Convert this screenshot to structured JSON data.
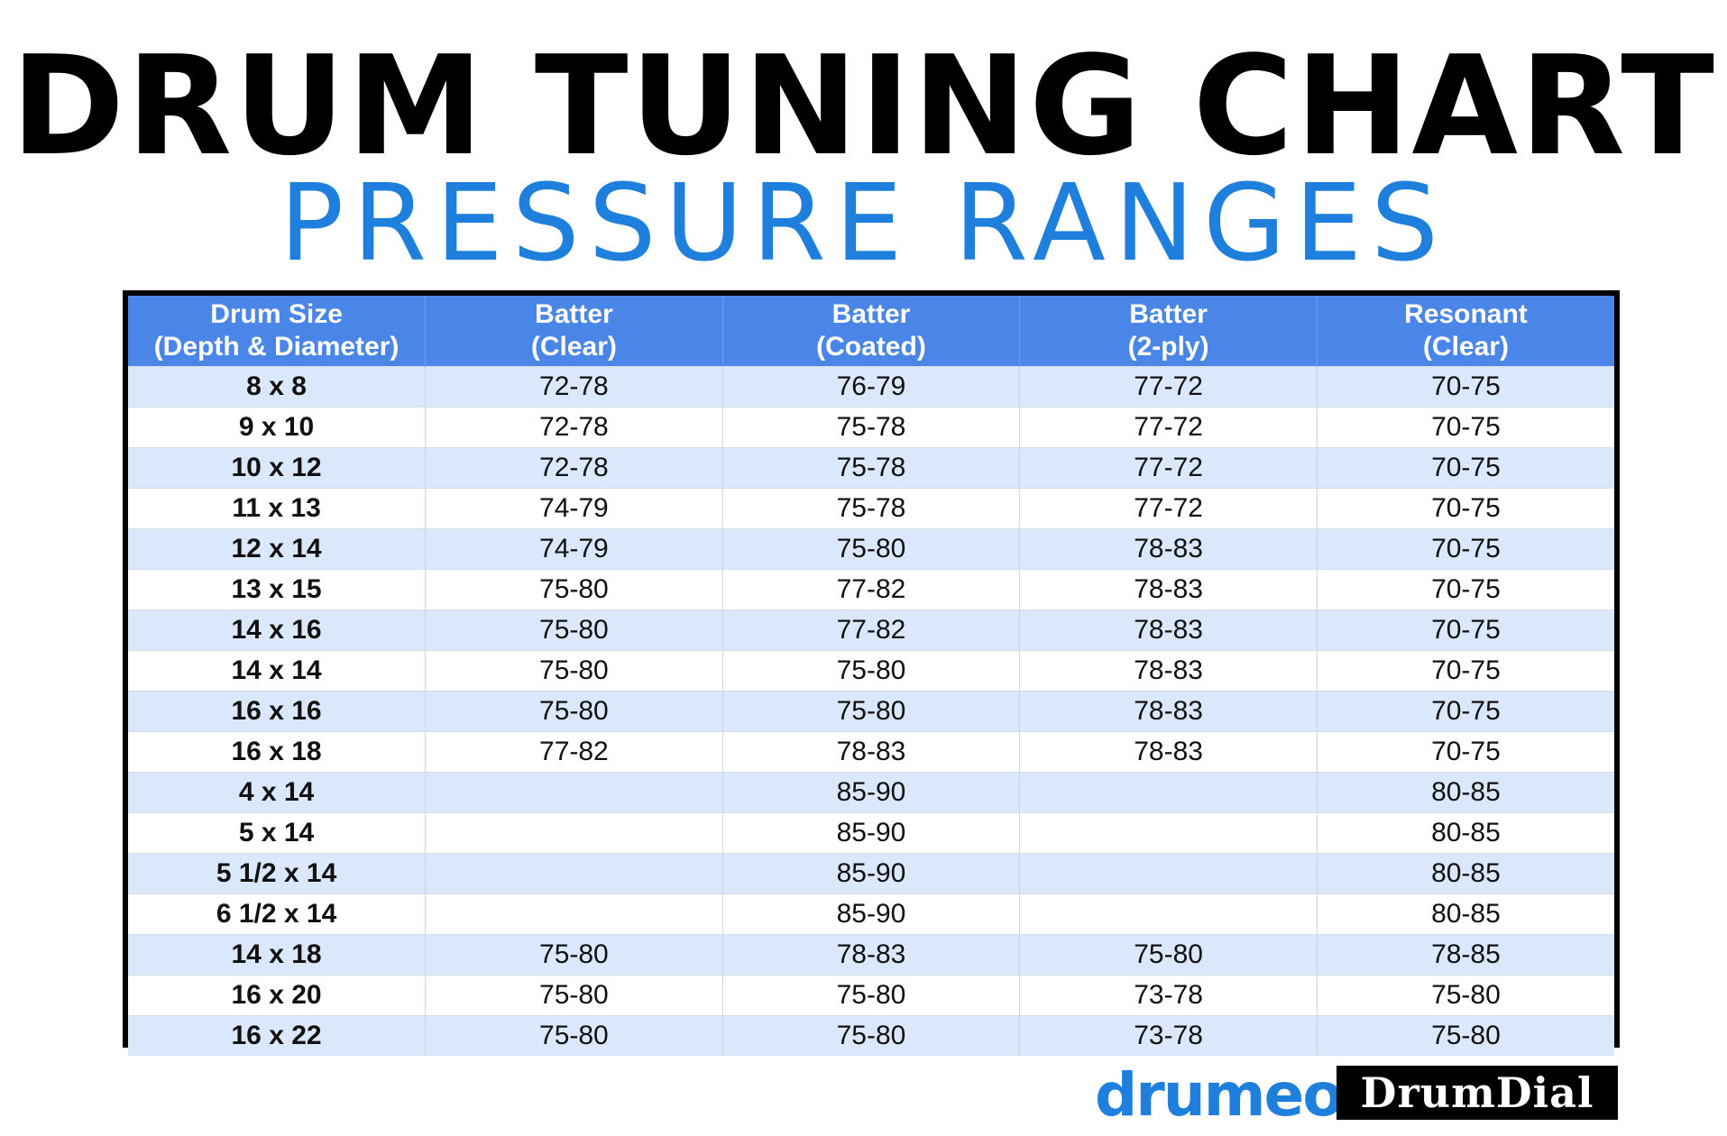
{
  "title": "DRUM TUNING CHART",
  "subtitle": "PRESSURE RANGES",
  "colors": {
    "accent_blue": "#1f7fdc",
    "header_blue": "#4a86e8",
    "row_stripe": "#dbe8fb"
  },
  "table": {
    "headers": [
      [
        "Drum Size",
        "(Depth & Diameter)"
      ],
      [
        "Batter",
        "(Clear)"
      ],
      [
        "Batter",
        "(Coated)"
      ],
      [
        "Batter",
        "(2-ply)"
      ],
      [
        "Resonant",
        "(Clear)"
      ]
    ],
    "rows": [
      [
        "8 x 8",
        "72-78",
        "76-79",
        "77-72",
        "70-75"
      ],
      [
        "9 x 10",
        "72-78",
        "75-78",
        "77-72",
        "70-75"
      ],
      [
        "10 x 12",
        "72-78",
        "75-78",
        "77-72",
        "70-75"
      ],
      [
        "11 x 13",
        "74-79",
        "75-78",
        "77-72",
        "70-75"
      ],
      [
        "12 x 14",
        "74-79",
        "75-80",
        "78-83",
        "70-75"
      ],
      [
        "13 x 15",
        "75-80",
        "77-82",
        "78-83",
        "70-75"
      ],
      [
        "14 x 16",
        "75-80",
        "77-82",
        "78-83",
        "70-75"
      ],
      [
        "14 x 14",
        "75-80",
        "75-80",
        "78-83",
        "70-75"
      ],
      [
        "16 x 16",
        "75-80",
        "75-80",
        "78-83",
        "70-75"
      ],
      [
        "16 x 18",
        "77-82",
        "78-83",
        "78-83",
        "70-75"
      ],
      [
        "4 x 14",
        "",
        "85-90",
        "",
        "80-85"
      ],
      [
        "5 x 14",
        "",
        "85-90",
        "",
        "80-85"
      ],
      [
        "5 1/2 x 14",
        "",
        "85-90",
        "",
        "80-85"
      ],
      [
        "6 1/2 x 14",
        "",
        "85-90",
        "",
        "80-85"
      ],
      [
        "14 x 18",
        "75-80",
        "78-83",
        "75-80",
        "78-85"
      ],
      [
        "16 x 20",
        "75-80",
        "75-80",
        "73-78",
        "75-80"
      ],
      [
        "16 x 22",
        "75-80",
        "75-80",
        "73-78",
        "75-80"
      ]
    ]
  },
  "logos": {
    "drumeo": "drumeo",
    "drumdial": "DrumDial"
  }
}
